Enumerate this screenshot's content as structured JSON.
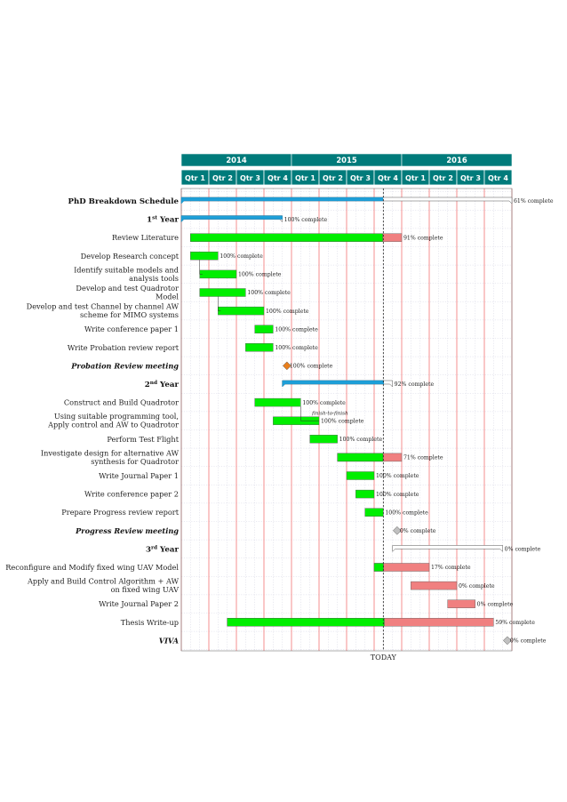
{
  "chart_data": {
    "type": "gantt",
    "years": [
      "2014",
      "2015",
      "2016"
    ],
    "quarters": [
      "Qtr 1",
      "Qtr 2",
      "Qtr 3",
      "Qtr 4",
      "Qtr 1",
      "Qtr 2",
      "Qtr 3",
      "Qtr 4",
      "Qtr 1",
      "Qtr 2",
      "Qtr 3",
      "Qtr 4"
    ],
    "today_label": "TODAY",
    "today_month": 22,
    "colors": {
      "header": "#007b7b",
      "group": "#1e9fd8",
      "done": "#00ee00",
      "remaining": "#f08080",
      "milestone_done": "#e87f1d",
      "milestone_todo": "#c0c0c0",
      "quarter_line": "#f06060",
      "month_line": "#c8c8d8"
    },
    "rows": [
      {
        "label": "PhD Breakdown Schedule",
        "kind": "group",
        "style": "bold",
        "start": 0,
        "end": 36,
        "progress": 61,
        "pct_label": "61% complete"
      },
      {
        "label": "1",
        "sup": "st",
        "label_rest": " Year",
        "kind": "group",
        "style": "bold",
        "start": 0,
        "end": 11,
        "progress": 100,
        "pct_label": "100% complete"
      },
      {
        "label": "Review Literature",
        "kind": "bar",
        "start": 1,
        "end": 24,
        "progress": 91,
        "pct_label": "91% complete"
      },
      {
        "label": "Develop Research concept",
        "kind": "bar",
        "start": 1,
        "end": 4,
        "progress": 100,
        "pct_label": "100% complete"
      },
      {
        "label": "Identify suitable models and",
        "label2": "analysis tools",
        "kind": "bar",
        "start": 2,
        "end": 6,
        "progress": 100,
        "pct_label": "100% complete"
      },
      {
        "label": "Develop and test Quadrotor",
        "label2": "Model",
        "kind": "bar",
        "start": 2,
        "end": 7,
        "progress": 100,
        "pct_label": "100% complete"
      },
      {
        "label": "Develop and test Channel by channel AW",
        "label2": "scheme for MIMO systems",
        "kind": "bar",
        "start": 4,
        "end": 9,
        "progress": 100,
        "pct_label": "100% complete"
      },
      {
        "label": "Write conference paper 1",
        "kind": "bar",
        "start": 8,
        "end": 10,
        "progress": 100,
        "pct_label": "100% complete"
      },
      {
        "label": "Write Probation review report",
        "kind": "bar",
        "start": 7,
        "end": 10,
        "progress": 100,
        "pct_label": "100% complete"
      },
      {
        "label": "Probation Review meeting",
        "kind": "milestone",
        "style": "bold-italic",
        "at": 11,
        "progress": 100,
        "pct_label": "100% complete"
      },
      {
        "label": "2",
        "sup": "nd",
        "label_rest": " Year",
        "kind": "group",
        "style": "bold",
        "start": 11,
        "end": 23,
        "progress": 92,
        "pct_label": "92% complete"
      },
      {
        "label": "Construct and Build Quadrotor",
        "kind": "bar",
        "start": 8,
        "end": 13,
        "progress": 100,
        "pct_label": "100% complete"
      },
      {
        "label": "Using suitable programming tool,",
        "label2": "Apply control and AW to Quadrotor",
        "kind": "bar",
        "start": 10,
        "end": 15,
        "progress": 100,
        "pct_label": "100% complete",
        "note": "finish-to-finish"
      },
      {
        "label": "Perform Test Flight",
        "kind": "bar",
        "start": 14,
        "end": 17,
        "progress": 100,
        "pct_label": "100% complete"
      },
      {
        "label": "Investigate design for alternative AW",
        "label2": "synthesis for Quadrotor",
        "kind": "bar",
        "start": 17,
        "end": 24,
        "progress": 71,
        "pct_label": "71% complete"
      },
      {
        "label": "Write Journal Paper 1",
        "kind": "bar",
        "start": 18,
        "end": 21,
        "progress": 100,
        "pct_label": "100% complete"
      },
      {
        "label": "Write conference paper 2",
        "kind": "bar",
        "start": 19,
        "end": 21,
        "progress": 100,
        "pct_label": "100% complete"
      },
      {
        "label": "Prepare Progress review report",
        "kind": "bar",
        "start": 20,
        "end": 22,
        "progress": 100,
        "pct_label": "100% complete"
      },
      {
        "label": "Progress Review meeting",
        "kind": "milestone",
        "style": "bold-italic",
        "at": 23,
        "progress": 0,
        "pct_label": "0% complete"
      },
      {
        "label": "3",
        "sup": "rd",
        "label_rest": " Year",
        "kind": "group",
        "style": "bold",
        "start": 23,
        "end": 35,
        "progress": 0,
        "pct_label": "0% complete"
      },
      {
        "label": "Reconfigure and Modify fixed wing UAV Model",
        "kind": "bar",
        "start": 21,
        "end": 27,
        "progress": 17,
        "pct_label": "17% complete"
      },
      {
        "label": "Apply and Build Control Algorithm + AW",
        "label2": "on fixed wing UAV",
        "kind": "bar",
        "start": 25,
        "end": 30,
        "progress": 0,
        "pct_label": "0% complete"
      },
      {
        "label": "Write Journal Paper 2",
        "kind": "bar",
        "start": 29,
        "end": 32,
        "progress": 0,
        "pct_label": "0% complete"
      },
      {
        "label": "Thesis Write-up",
        "kind": "bar",
        "start": 5,
        "end": 34,
        "progress": 59,
        "pct_label": "59% complete"
      },
      {
        "label": "VIVA",
        "kind": "milestone",
        "style": "bold-italic",
        "at": 35,
        "progress": 0,
        "pct_label": "0% complete"
      }
    ]
  }
}
